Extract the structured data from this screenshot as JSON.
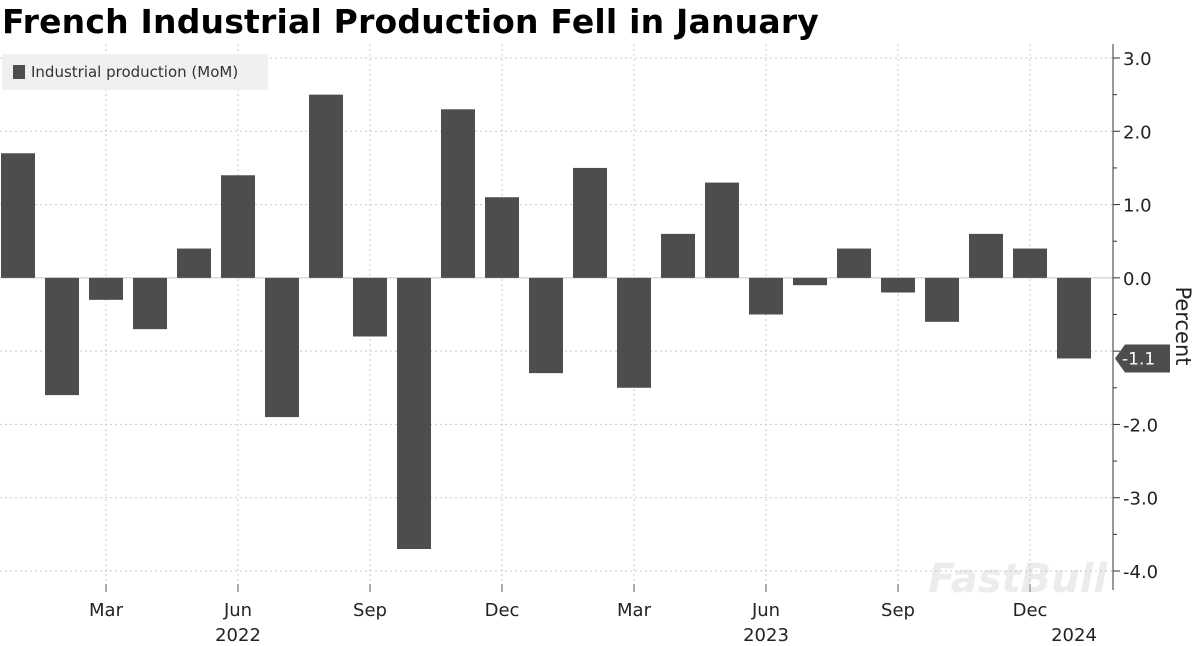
{
  "title": "French Industrial Production Fell in January",
  "watermark": "FastBull",
  "chart_data": {
    "type": "bar",
    "title": "French Industrial Production Fell in January",
    "legend": {
      "placement": "top-left",
      "entries": [
        "Industrial production (MoM)"
      ]
    },
    "ylabel": "Percent",
    "ylabel_position": "right",
    "ylim": [
      -4.0,
      3.0
    ],
    "y_ticks": [
      "3.0",
      "2.0",
      "1.0",
      "0.0",
      "-1.0",
      "-2.0",
      "-3.0",
      "-4.0"
    ],
    "x_tick_labels": [
      {
        "label": "Mar",
        "month": "2022-03"
      },
      {
        "label": "Jun",
        "month": "2022-06"
      },
      {
        "label": "Sep",
        "month": "2022-09"
      },
      {
        "label": "Dec",
        "month": "2022-12"
      },
      {
        "label": "Mar",
        "month": "2023-03"
      },
      {
        "label": "Jun",
        "month": "2023-06"
      },
      {
        "label": "Sep",
        "month": "2023-09"
      },
      {
        "label": "Dec",
        "month": "2023-12"
      }
    ],
    "year_labels": [
      {
        "label": "2022",
        "month": "2022-06"
      },
      {
        "label": "2023",
        "month": "2023-06"
      },
      {
        "label": "2024",
        "month": "2024-01"
      }
    ],
    "grid": true,
    "bar_color": "#4d4d4d",
    "series": [
      {
        "name": "Industrial production (MoM)",
        "x": [
          "2022-01",
          "2022-02",
          "2022-03",
          "2022-04",
          "2022-05",
          "2022-06",
          "2022-07",
          "2022-08",
          "2022-09",
          "2022-10",
          "2022-11",
          "2022-12",
          "2023-01",
          "2023-02",
          "2023-03",
          "2023-04",
          "2023-05",
          "2023-06",
          "2023-07",
          "2023-08",
          "2023-09",
          "2023-10",
          "2023-11",
          "2023-12",
          "2024-01"
        ],
        "values": [
          1.7,
          -1.6,
          -0.3,
          -0.7,
          0.4,
          1.4,
          -1.9,
          2.5,
          -0.8,
          -3.7,
          2.3,
          1.1,
          -1.3,
          1.5,
          -1.5,
          0.6,
          1.3,
          -0.5,
          -0.1,
          0.4,
          -0.2,
          -0.6,
          0.6,
          0.4,
          -1.1
        ]
      }
    ],
    "last_value_label": "-1.1"
  }
}
